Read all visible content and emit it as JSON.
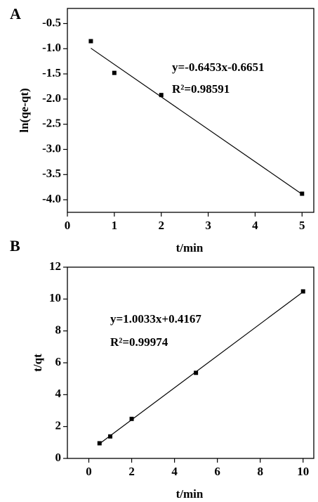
{
  "chart_data": [
    {
      "type": "scatter",
      "label": "A",
      "xlabel": "t/min",
      "ylabel": "ln(qe-qt)",
      "x": [
        0.5,
        1,
        2,
        5
      ],
      "values": [
        -0.85,
        -1.48,
        -1.92,
        -3.88
      ],
      "color": "#000000",
      "fit": {
        "x": [
          0.5,
          5
        ],
        "values": [
          -0.99,
          -3.89
        ]
      },
      "annotations": [
        "y=-0.6453x-0.6651",
        "R²=0.98591"
      ],
      "xlim": [
        0,
        5.25
      ],
      "xticks": [
        0,
        1,
        2,
        3,
        4,
        5
      ],
      "ylim": [
        -4.25,
        -0.2
      ],
      "yticks": [
        -0.5,
        {
          "value": -1,
          "label": "-1.0"
        },
        -1.5,
        {
          "value": -2,
          "label": "-2.0"
        },
        -2.5,
        {
          "value": -3,
          "label": "-3.0"
        },
        -3.5,
        {
          "value": -4,
          "label": "-4.0"
        }
      ]
    },
    {
      "type": "scatter",
      "label": "B",
      "xlabel": "t/min",
      "ylabel": "t/qt",
      "x": [
        0.5,
        1,
        2,
        5,
        10
      ],
      "values": [
        0.95,
        1.38,
        2.48,
        5.37,
        10.48
      ],
      "color": "#000000",
      "fit": {
        "x": [
          0.5,
          10
        ],
        "values": [
          0.92,
          10.45
        ]
      },
      "annotations": [
        "y=1.0033x+0.4167",
        "R²=0.99974"
      ],
      "xlim": [
        -1,
        10.5
      ],
      "xticks": [
        0,
        2,
        4,
        6,
        8,
        10
      ],
      "ylim": [
        0,
        12
      ],
      "yticks": [
        0,
        2,
        4,
        6,
        8,
        10,
        12
      ]
    }
  ]
}
